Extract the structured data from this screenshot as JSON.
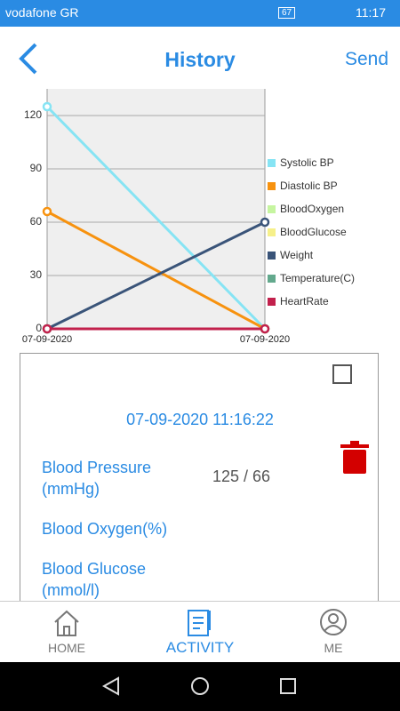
{
  "status_bar": {
    "carrier": "vodafone GR",
    "battery": "67",
    "time": "11:17"
  },
  "header": {
    "title": "History",
    "action": "Send"
  },
  "chart_data": {
    "type": "line",
    "categories": [
      "07-09-2020",
      "07-09-2020"
    ],
    "series": [
      {
        "name": "Systolic BP",
        "color": "#86e4f4",
        "values": [
          125,
          0
        ]
      },
      {
        "name": "Diastolic BP",
        "color": "#f7920f",
        "values": [
          66,
          0
        ]
      },
      {
        "name": "BloodOxygen",
        "color": "#c6f5a0",
        "values": [
          0,
          0
        ]
      },
      {
        "name": "BloodGlucose",
        "color": "#f6f08a",
        "values": [
          0,
          0
        ]
      },
      {
        "name": "Weight",
        "color": "#3a5479",
        "values": [
          0,
          60
        ]
      },
      {
        "name": "Temperature(C)",
        "color": "#63a98d",
        "values": [
          0,
          0
        ]
      },
      {
        "name": "HeartRate",
        "color": "#c2204c",
        "values": [
          0,
          0
        ]
      }
    ],
    "ylim": [
      0,
      135
    ],
    "yticks": [
      0,
      30,
      60,
      90,
      120
    ],
    "grid": true,
    "legend": "right"
  },
  "card": {
    "datetime": "07-09-2020 11:16:22",
    "rows": [
      {
        "label": "Blood Pressure (mmHg)",
        "value": "125 / 66"
      },
      {
        "label": "Blood Oxygen(%)"
      },
      {
        "label": "Blood Glucose (mmol/l)"
      }
    ]
  },
  "nav": {
    "items": [
      "HOME",
      "ACTIVITY",
      "ME"
    ]
  }
}
